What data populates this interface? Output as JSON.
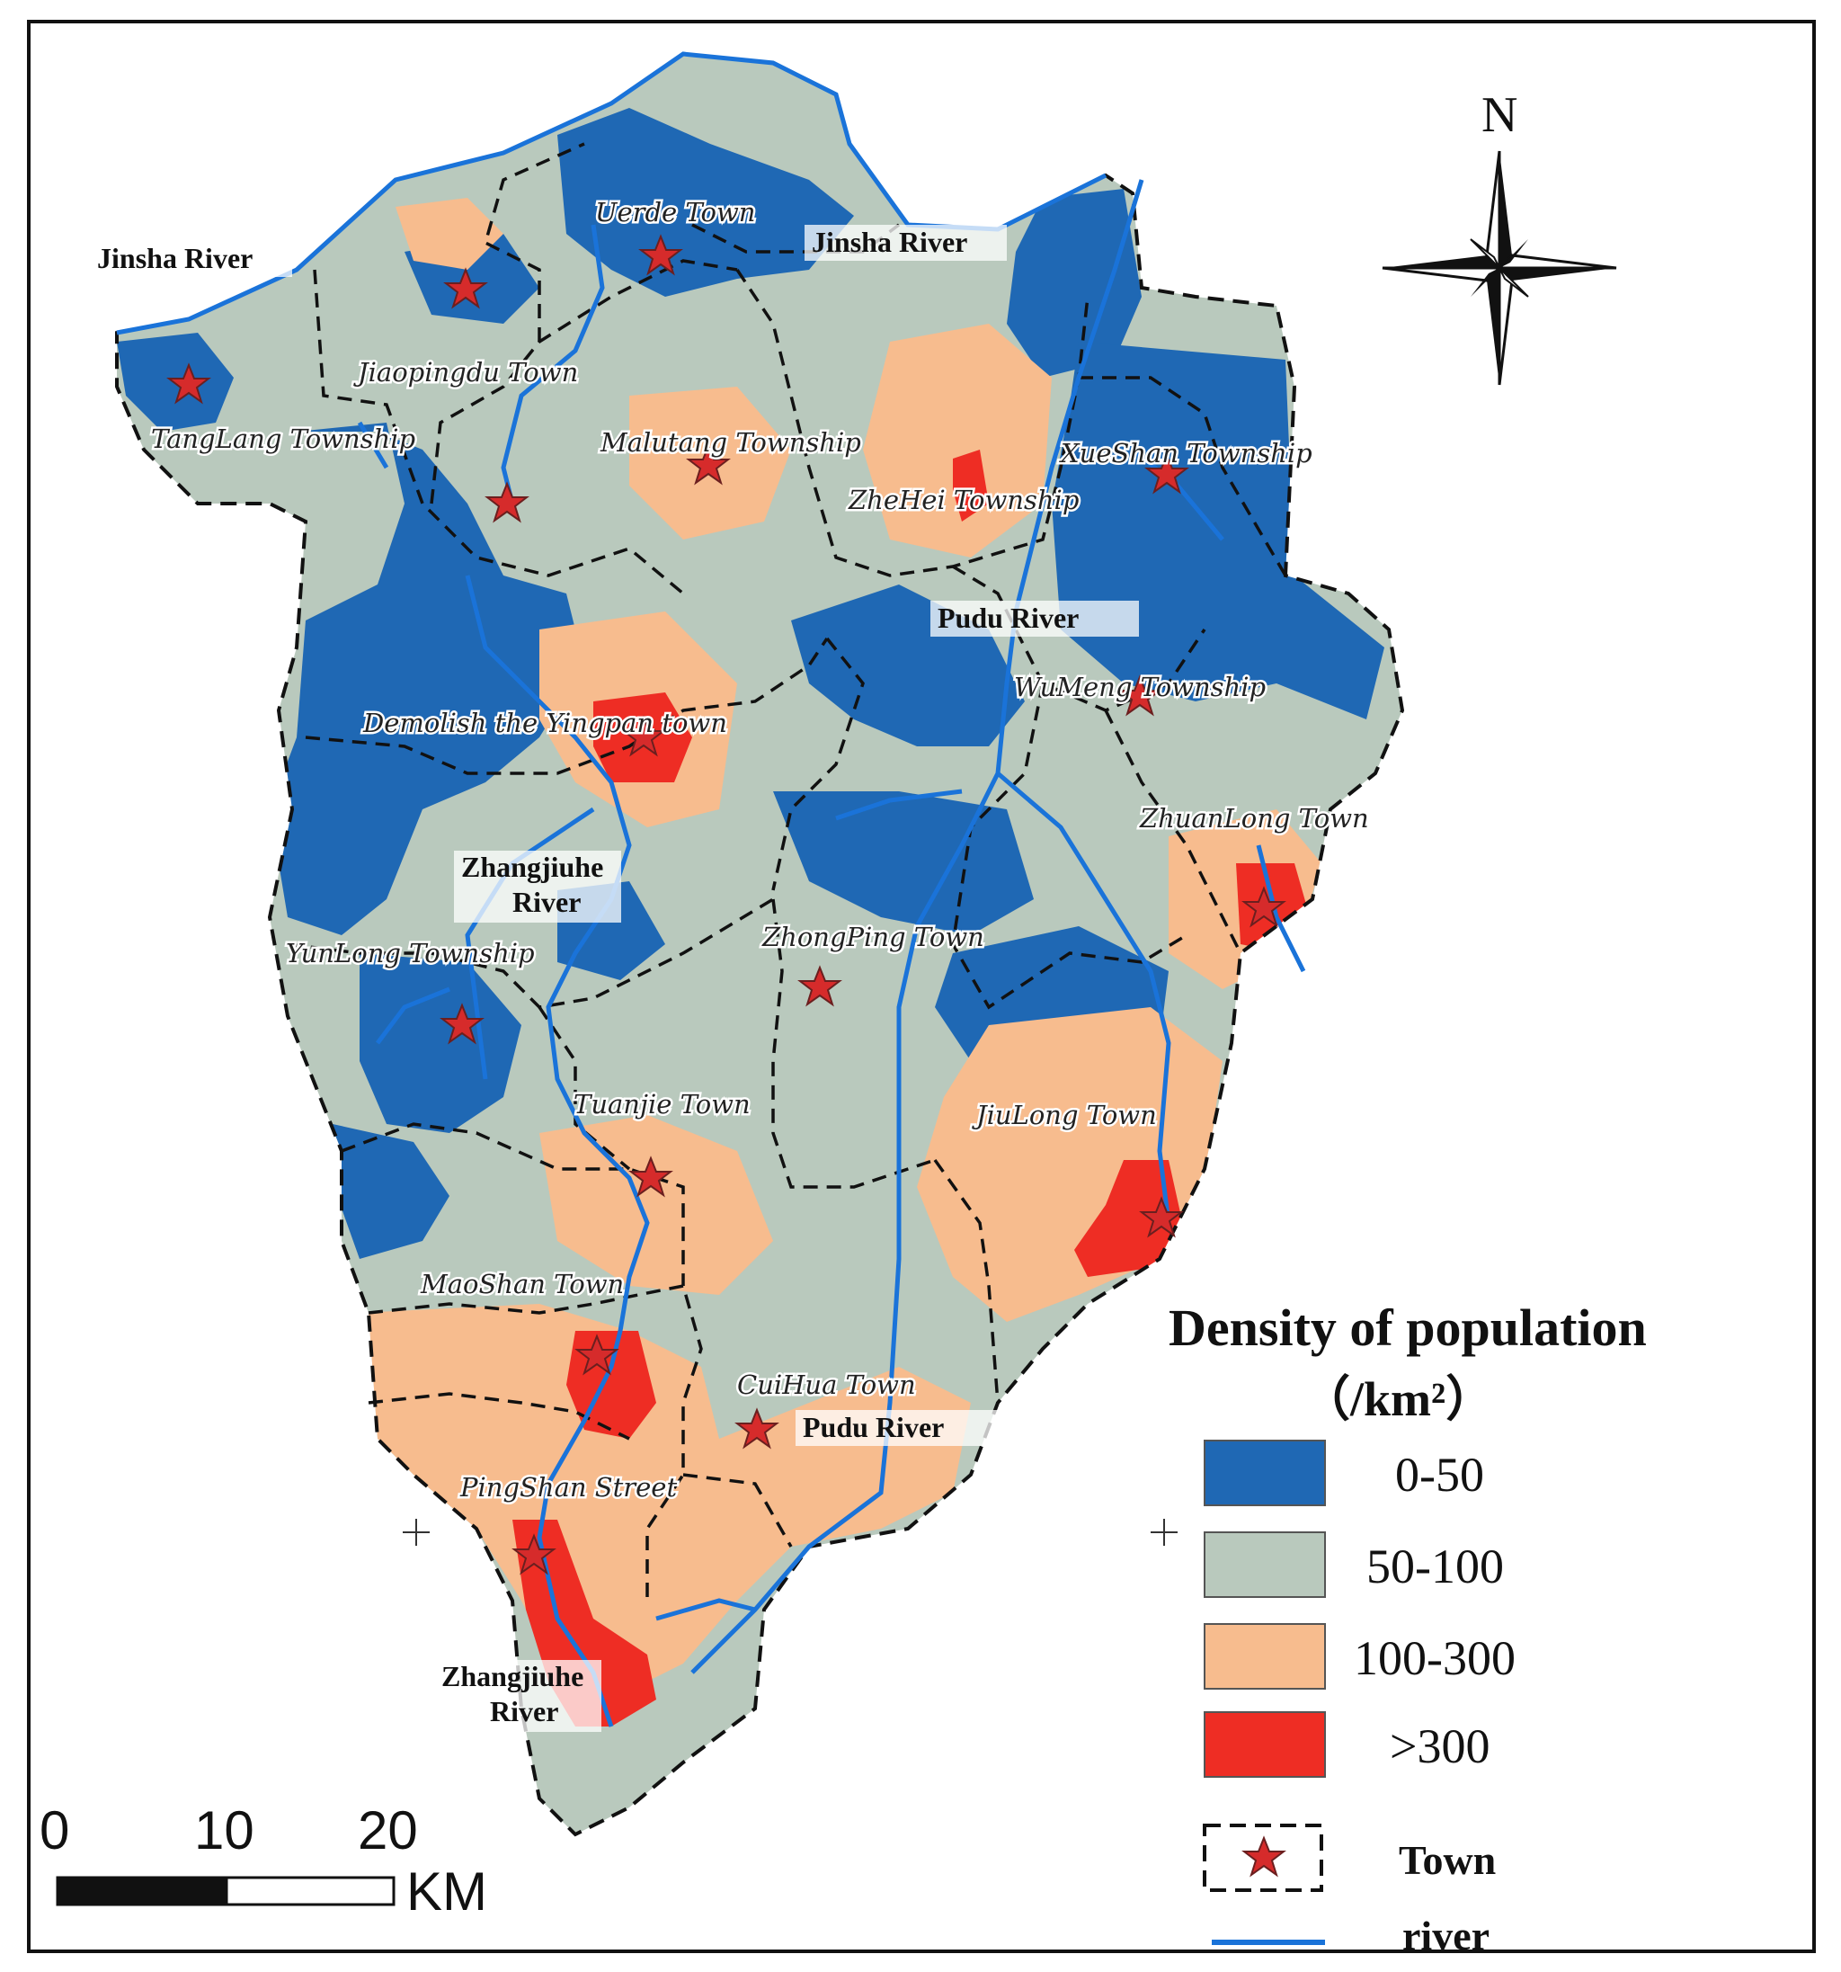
{
  "map": {
    "rivers": {
      "jinsha_west": "Jinsha River",
      "jinsha_east": "Jinsha River",
      "pudu_north": "Pudu   River",
      "pudu_south": "Pudu   River",
      "zhangjiuhe_north_1": "Zhangjiuhe",
      "zhangjiuhe_north_2": "River",
      "zhangjiuhe_south_1": "Zhangjiuhe",
      "zhangjiuhe_south_2": "River"
    },
    "towns": {
      "uerde": "Uerde Town",
      "jiaopingdu": "Jiaopingdu Town",
      "tanglang": "TangLang Township",
      "malutang": "Malutang Township",
      "zhelei": "ZheHei Township",
      "xueshan": "XueShan Township",
      "wumeng": "WuMeng Township",
      "yingpan": "Demolish the Yingpan town",
      "zhuanlong": "ZhuanLong Town",
      "zhongping": "ZhongPing Town",
      "yunlong": "YunLong Township",
      "tuanjie": "Tuanjie Town",
      "jiulong": "JiuLong Town",
      "maoshan": "MaoShan Town",
      "cuihua": "CuiHua Town",
      "pingshan": "PingShan Street"
    }
  },
  "legend": {
    "title": "Density of population",
    "unit": "（/km²）",
    "classes": [
      {
        "label": "0-50",
        "color": "#1f68b4"
      },
      {
        "label": "50-100",
        "color": "#b9c9bd"
      },
      {
        "label": "100-300",
        "color": "#f7bc8e"
      },
      {
        "label": ">300",
        "color": "#ee2d24"
      }
    ],
    "town_label": "Town",
    "river_label": "river",
    "river_color": "#1a73d9",
    "star_color": "#d62b2b"
  },
  "scale_bar": {
    "ticks": [
      "0",
      "10",
      "20"
    ],
    "unit": "KM"
  },
  "north_arrow": {
    "label": "N"
  }
}
